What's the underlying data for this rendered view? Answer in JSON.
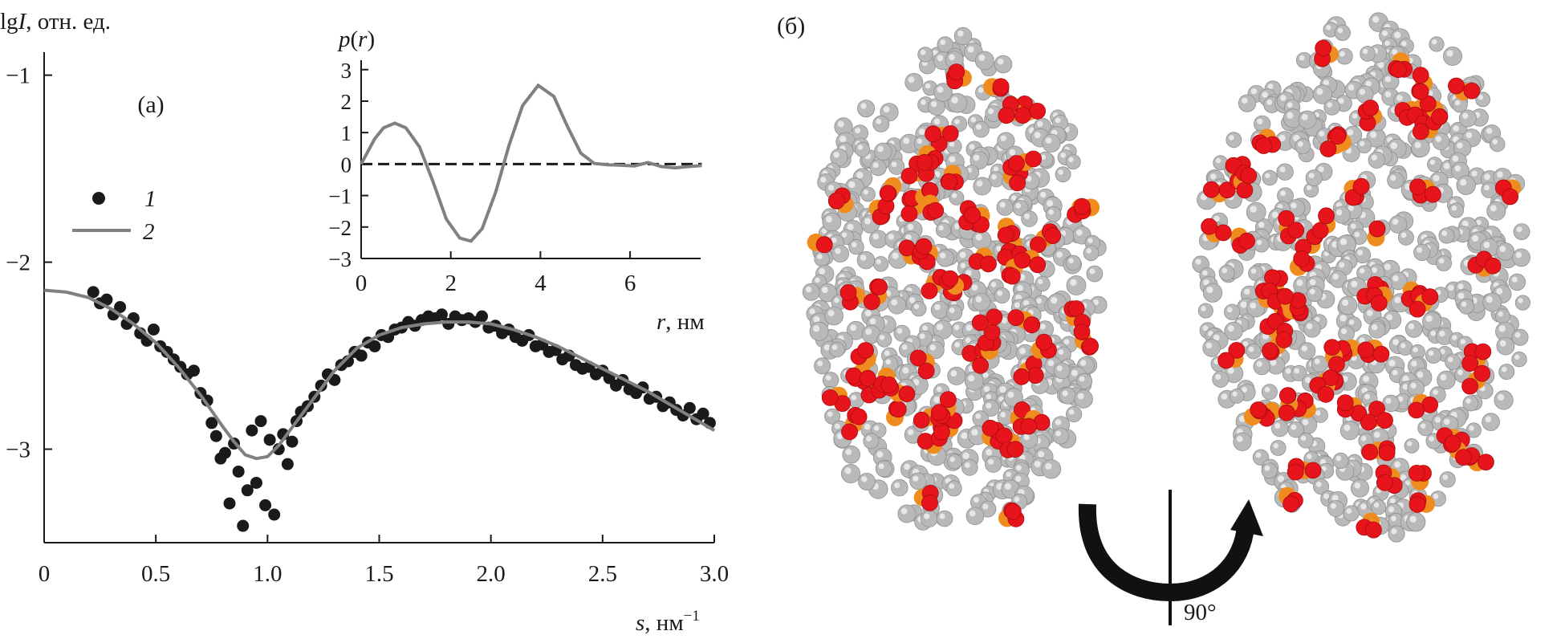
{
  "panel_a": {
    "label": "(а)",
    "ylabel_main": "lg",
    "ylabel_italic": "I",
    "ylabel_units": ", отн. ед.",
    "xlabel_italic": "s",
    "xlabel_units": ", нм",
    "xlabel_sup": "−1",
    "legend": [
      {
        "marker": "dot",
        "label": "1"
      },
      {
        "marker": "line",
        "label": "2"
      }
    ]
  },
  "inset": {
    "ylabel_italic_1": "p",
    "ylabel_paren_open": "(",
    "ylabel_italic_2": "r",
    "ylabel_paren_close": ")",
    "xlabel_italic": "r",
    "xlabel_units": ", нм"
  },
  "panel_b": {
    "label": "(б)",
    "rotation_label": "90°",
    "colors": {
      "carbon": "#b9b9b9",
      "oxygen": "#e8141b",
      "phosphorus": "#f08c1e",
      "arrow": "#111111"
    }
  },
  "colors": {
    "points": "#1a1a1a",
    "curve": "#808080",
    "axis": "#1a1a1a"
  },
  "chart_data": [
    {
      "type": "scatter",
      "xlim": [
        0,
        3.0
      ],
      "ylim": [
        -3.5,
        -0.95
      ],
      "xticks": [
        0,
        0.5,
        1.0,
        1.5,
        2.0,
        2.5,
        3.0
      ],
      "xtick_labels": [
        "0",
        "0.5",
        "1.0",
        "1.5",
        "2.0",
        "2.5",
        "3.0"
      ],
      "yticks": [
        -1,
        -2,
        -3
      ],
      "ytick_labels": [
        "−1",
        "−2",
        "−3"
      ],
      "series": [
        {
          "name": "1",
          "kind": "points",
          "x": [
            0.22,
            0.25,
            0.28,
            0.31,
            0.34,
            0.37,
            0.4,
            0.43,
            0.46,
            0.49,
            0.52,
            0.55,
            0.58,
            0.61,
            0.64,
            0.67,
            0.7,
            0.73,
            0.75,
            0.77,
            0.79,
            0.81,
            0.83,
            0.85,
            0.87,
            0.89,
            0.91,
            0.93,
            0.95,
            0.97,
            0.99,
            1.01,
            1.03,
            1.05,
            1.07,
            1.09,
            1.11,
            1.13,
            1.15,
            1.18,
            1.21,
            1.24,
            1.27,
            1.3,
            1.33,
            1.36,
            1.39,
            1.42,
            1.45,
            1.48,
            1.51,
            1.54,
            1.57,
            1.6,
            1.63,
            1.66,
            1.69,
            1.72,
            1.75,
            1.78,
            1.81,
            1.84,
            1.87,
            1.9,
            1.93,
            1.96,
            1.99,
            2.02,
            2.05,
            2.08,
            2.11,
            2.14,
            2.17,
            2.2,
            2.23,
            2.26,
            2.29,
            2.32,
            2.35,
            2.38,
            2.41,
            2.44,
            2.47,
            2.5,
            2.53,
            2.56,
            2.59,
            2.62,
            2.65,
            2.68,
            2.71,
            2.74,
            2.77,
            2.8,
            2.83,
            2.86,
            2.89,
            2.92,
            2.95,
            2.98
          ],
          "y": [
            -2.16,
            -2.22,
            -2.2,
            -2.28,
            -2.24,
            -2.33,
            -2.3,
            -2.38,
            -2.42,
            -2.36,
            -2.45,
            -2.48,
            -2.52,
            -2.56,
            -2.6,
            -2.58,
            -2.7,
            -2.74,
            -2.86,
            -2.93,
            -3.05,
            -3.02,
            -3.29,
            -2.97,
            -3.12,
            -3.41,
            -3.22,
            -2.9,
            -3.18,
            -2.85,
            -3.3,
            -2.95,
            -3.35,
            -3.0,
            -2.92,
            -3.08,
            -2.96,
            -2.85,
            -2.8,
            -2.77,
            -2.72,
            -2.66,
            -2.6,
            -2.63,
            -2.55,
            -2.53,
            -2.48,
            -2.5,
            -2.43,
            -2.45,
            -2.39,
            -2.4,
            -2.36,
            -2.35,
            -2.32,
            -2.34,
            -2.31,
            -2.29,
            -2.3,
            -2.28,
            -2.33,
            -2.29,
            -2.31,
            -2.3,
            -2.32,
            -2.29,
            -2.35,
            -2.34,
            -2.38,
            -2.36,
            -2.4,
            -2.42,
            -2.39,
            -2.45,
            -2.44,
            -2.48,
            -2.47,
            -2.52,
            -2.5,
            -2.55,
            -2.57,
            -2.56,
            -2.6,
            -2.58,
            -2.62,
            -2.66,
            -2.63,
            -2.68,
            -2.7,
            -2.67,
            -2.73,
            -2.72,
            -2.77,
            -2.75,
            -2.79,
            -2.82,
            -2.78,
            -2.84,
            -2.81,
            -2.86
          ]
        },
        {
          "name": "2",
          "kind": "line",
          "x": [
            0,
            0.1,
            0.2,
            0.3,
            0.4,
            0.5,
            0.6,
            0.7,
            0.8,
            0.85,
            0.9,
            0.95,
            1.0,
            1.05,
            1.1,
            1.2,
            1.3,
            1.4,
            1.5,
            1.6,
            1.7,
            1.8,
            1.9,
            2.0,
            2.1,
            2.2,
            2.3,
            2.4,
            2.5,
            2.6,
            2.7,
            2.8,
            2.9,
            3.0
          ],
          "y": [
            -2.15,
            -2.16,
            -2.19,
            -2.25,
            -2.33,
            -2.43,
            -2.56,
            -2.71,
            -2.88,
            -2.96,
            -3.03,
            -3.05,
            -3.04,
            -2.98,
            -2.9,
            -2.74,
            -2.58,
            -2.46,
            -2.39,
            -2.35,
            -2.33,
            -2.32,
            -2.32,
            -2.33,
            -2.36,
            -2.4,
            -2.45,
            -2.51,
            -2.57,
            -2.63,
            -2.69,
            -2.76,
            -2.83,
            -2.9
          ]
        }
      ]
    },
    {
      "type": "line",
      "xlim": [
        0,
        7.7
      ],
      "ylim": [
        -3,
        3.3
      ],
      "xticks": [
        0,
        2,
        4,
        6
      ],
      "xtick_labels": [
        "0",
        "2",
        "4",
        "6"
      ],
      "yticks": [
        3,
        2,
        1,
        0,
        -1,
        -2,
        -3
      ],
      "ytick_labels": [
        "3",
        "2",
        "1",
        "0",
        "−1",
        "−2",
        "−3"
      ],
      "series": [
        {
          "kind": "line",
          "x": [
            0,
            0.3,
            0.5,
            0.75,
            1.0,
            1.3,
            1.6,
            1.9,
            2.2,
            2.45,
            2.7,
            3.0,
            3.3,
            3.6,
            3.95,
            4.3,
            4.6,
            4.9,
            5.2,
            5.5,
            5.8,
            6.1,
            6.4,
            6.7,
            7.0,
            7.3,
            7.6
          ],
          "y": [
            0,
            0.8,
            1.15,
            1.3,
            1.15,
            0.55,
            -0.55,
            -1.75,
            -2.35,
            -2.45,
            -2.05,
            -0.9,
            0.6,
            1.85,
            2.5,
            2.15,
            1.2,
            0.35,
            0.02,
            -0.02,
            -0.04,
            -0.06,
            0.05,
            -0.08,
            -0.12,
            -0.08,
            -0.05
          ]
        },
        {
          "kind": "reference",
          "style": "dashed",
          "y": 0
        }
      ]
    }
  ]
}
